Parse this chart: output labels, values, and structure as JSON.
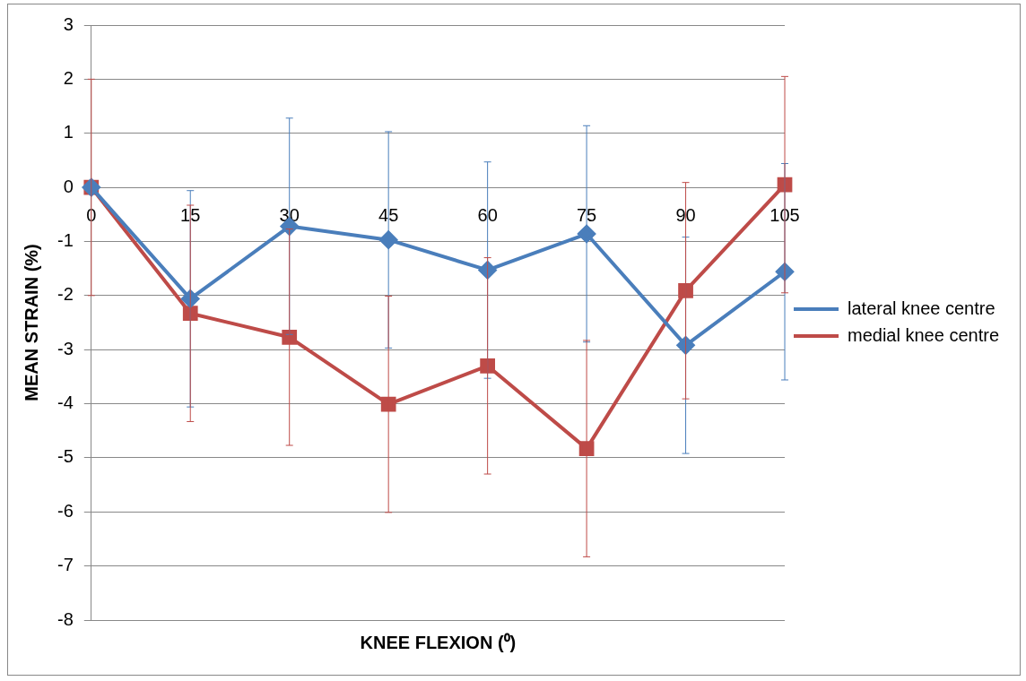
{
  "chart_data": {
    "type": "line",
    "xlabel": "KNEE FLEXION (⁰)",
    "ylabel": "MEAN STRAIN (%)",
    "categories": [
      "0",
      "15",
      "30",
      "45",
      "60",
      "75",
      "90",
      "105"
    ],
    "ylim": [
      -8,
      3
    ],
    "yticks": [
      -8,
      -7,
      -6,
      -5,
      -4,
      -3,
      -2,
      -1,
      0,
      1,
      2,
      3
    ],
    "grid": "y",
    "legend": "right",
    "series": [
      {
        "name": "lateral knee centre",
        "color": "#4a7ebb",
        "marker": "diamond",
        "values": [
          0,
          -2.06,
          -0.72,
          -0.97,
          -1.53,
          -0.86,
          -2.92,
          -1.56
        ],
        "errors": [
          null,
          2,
          2,
          2,
          2,
          2,
          2,
          2
        ]
      },
      {
        "name": "medial knee centre",
        "color": "#be4b48",
        "marker": "square",
        "values": [
          0,
          -2.33,
          -2.77,
          -4.01,
          -3.3,
          -4.83,
          -1.91,
          0.05
        ],
        "errors": [
          2,
          2,
          2,
          2,
          2,
          2,
          2,
          2
        ]
      }
    ]
  }
}
